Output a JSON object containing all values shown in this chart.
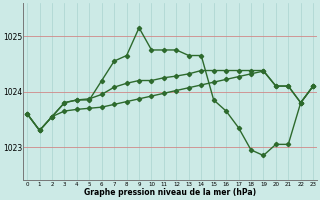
{
  "hours": [
    0,
    1,
    2,
    3,
    4,
    5,
    6,
    7,
    8,
    9,
    10,
    11,
    12,
    13,
    14,
    15,
    16,
    17,
    18,
    19,
    20,
    21,
    22,
    23
  ],
  "series1": [
    1023.6,
    1023.3,
    1023.55,
    1023.8,
    1023.85,
    1023.85,
    1024.2,
    1024.55,
    1024.65,
    1025.15,
    1024.75,
    1024.75,
    1024.75,
    1024.65,
    1024.65,
    1023.85,
    1023.65,
    1023.35,
    1022.95,
    1022.85,
    1023.05,
    1023.05,
    1023.8,
    1024.1
  ],
  "series2": [
    1023.6,
    1023.3,
    1023.55,
    1023.8,
    1023.85,
    1023.87,
    1023.95,
    1024.08,
    1024.15,
    1024.2,
    1024.2,
    1024.25,
    1024.28,
    1024.32,
    1024.38,
    1024.38,
    1024.38,
    1024.38,
    1024.38,
    1024.38,
    1024.1,
    1024.1,
    1023.8,
    1024.1
  ],
  "series3": [
    1023.6,
    1023.3,
    1023.55,
    1023.65,
    1023.68,
    1023.7,
    1023.72,
    1023.77,
    1023.82,
    1023.87,
    1023.92,
    1023.97,
    1024.02,
    1024.07,
    1024.12,
    1024.17,
    1024.22,
    1024.27,
    1024.32,
    1024.37,
    1024.1,
    1024.1,
    1023.8,
    1024.1
  ],
  "line_color": "#2d6a2d",
  "bg_color": "#cceae6",
  "grid_color_v": "#aad4d0",
  "grid_color_h_red": "#d08888",
  "ytick_labels": [
    "1023",
    "1024",
    "1025"
  ],
  "yticks": [
    1023,
    1024,
    1025
  ],
  "ylim": [
    1022.4,
    1025.6
  ],
  "xlabel": "Graphe pression niveau de la mer (hPa)",
  "marker": "D",
  "marker_size": 2.2,
  "linewidth": 1.0
}
